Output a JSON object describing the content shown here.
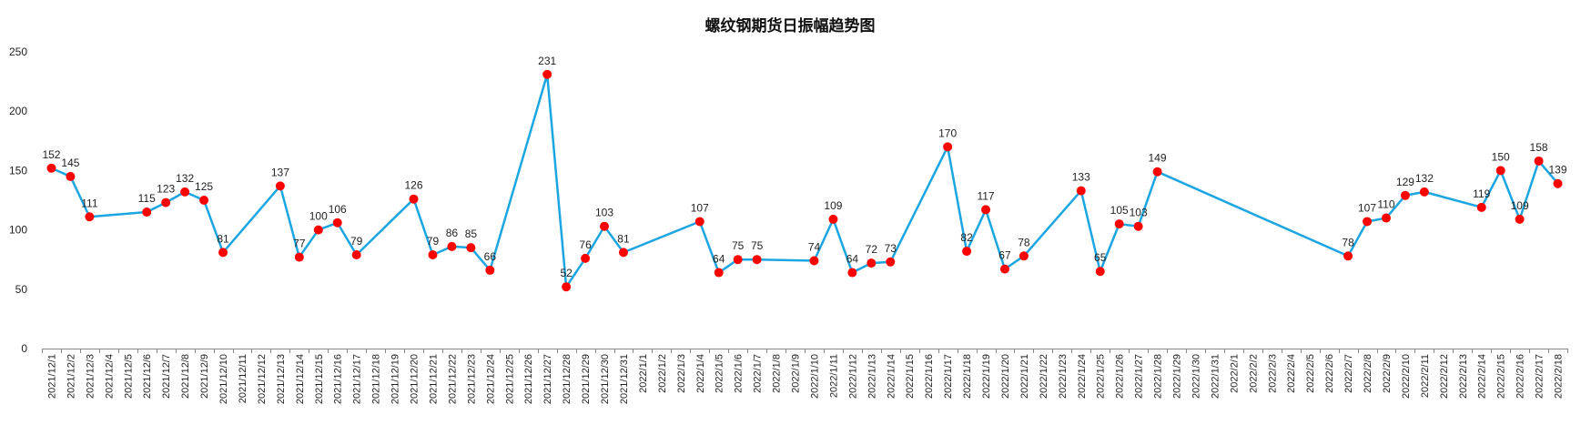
{
  "chart_data": {
    "type": "line",
    "title": "螺纹钢期货日振幅趋势图",
    "xlabel": "",
    "ylabel": "",
    "ylim": [
      0,
      250
    ],
    "yticks": [
      0,
      50,
      100,
      150,
      200,
      250
    ],
    "grid": false,
    "legend": "none",
    "colors": {
      "line": "#1BA6E2",
      "marker": "#FF0000",
      "axis": "#888888"
    },
    "categories": [
      "2021/12/1",
      "2021/12/2",
      "2021/12/3",
      "2021/12/4",
      "2021/12/5",
      "2021/12/6",
      "2021/12/7",
      "2021/12/8",
      "2021/12/9",
      "2021/12/10",
      "2021/12/11",
      "2021/12/12",
      "2021/12/13",
      "2021/12/14",
      "2021/12/15",
      "2021/12/16",
      "2021/12/17",
      "2021/12/18",
      "2021/12/19",
      "2021/12/20",
      "2021/12/21",
      "2021/12/22",
      "2021/12/23",
      "2021/12/24",
      "2021/12/25",
      "2021/12/26",
      "2021/12/27",
      "2021/12/28",
      "2021/12/29",
      "2021/12/30",
      "2021/12/31",
      "2022/1/1",
      "2022/1/2",
      "2022/1/3",
      "2022/1/4",
      "2022/1/5",
      "2022/1/6",
      "2022/1/7",
      "2022/1/8",
      "2022/1/9",
      "2022/1/10",
      "2022/1/11",
      "2022/1/12",
      "2022/1/13",
      "2022/1/14",
      "2022/1/15",
      "2022/1/16",
      "2022/1/17",
      "2022/1/18",
      "2022/1/19",
      "2022/1/20",
      "2022/1/21",
      "2022/1/22",
      "2022/1/23",
      "2022/1/24",
      "2022/1/25",
      "2022/1/26",
      "2022/1/27",
      "2022/1/28",
      "2022/1/29",
      "2022/1/30",
      "2022/1/31",
      "2022/2/1",
      "2022/2/2",
      "2022/2/3",
      "2022/2/4",
      "2022/2/5",
      "2022/2/6",
      "2022/2/7",
      "2022/2/8",
      "2022/2/9",
      "2022/2/10",
      "2022/2/11",
      "2022/2/12",
      "2022/2/13",
      "2022/2/14",
      "2022/2/15",
      "2022/2/16",
      "2022/2/17",
      "2022/2/18"
    ],
    "series": [
      {
        "points": [
          {
            "x": "2021/12/1",
            "y": 152
          },
          {
            "x": "2021/12/2",
            "y": 145
          },
          {
            "x": "2021/12/3",
            "y": 111
          },
          {
            "x": "2021/12/6",
            "y": 115
          },
          {
            "x": "2021/12/7",
            "y": 123
          },
          {
            "x": "2021/12/8",
            "y": 132
          },
          {
            "x": "2021/12/9",
            "y": 125
          },
          {
            "x": "2021/12/10",
            "y": 81
          },
          {
            "x": "2021/12/13",
            "y": 137
          },
          {
            "x": "2021/12/14",
            "y": 77
          },
          {
            "x": "2021/12/15",
            "y": 100
          },
          {
            "x": "2021/12/16",
            "y": 106
          },
          {
            "x": "2021/12/17",
            "y": 79
          },
          {
            "x": "2021/12/20",
            "y": 126
          },
          {
            "x": "2021/12/21",
            "y": 79
          },
          {
            "x": "2021/12/22",
            "y": 86
          },
          {
            "x": "2021/12/23",
            "y": 85
          },
          {
            "x": "2021/12/24",
            "y": 66
          },
          {
            "x": "2021/12/27",
            "y": 231
          },
          {
            "x": "2021/12/28",
            "y": 52
          },
          {
            "x": "2021/12/29",
            "y": 76
          },
          {
            "x": "2021/12/30",
            "y": 103
          },
          {
            "x": "2021/12/31",
            "y": 81
          },
          {
            "x": "2022/1/4",
            "y": 107
          },
          {
            "x": "2022/1/5",
            "y": 64
          },
          {
            "x": "2022/1/6",
            "y": 75
          },
          {
            "x": "2022/1/7",
            "y": 75
          },
          {
            "x": "2022/1/10",
            "y": 74
          },
          {
            "x": "2022/1/11",
            "y": 109
          },
          {
            "x": "2022/1/12",
            "y": 64
          },
          {
            "x": "2022/1/13",
            "y": 72
          },
          {
            "x": "2022/1/14",
            "y": 73
          },
          {
            "x": "2022/1/17",
            "y": 170
          },
          {
            "x": "2022/1/18",
            "y": 82
          },
          {
            "x": "2022/1/19",
            "y": 117
          },
          {
            "x": "2022/1/20",
            "y": 67
          },
          {
            "x": "2022/1/21",
            "y": 78
          },
          {
            "x": "2022/1/24",
            "y": 133
          },
          {
            "x": "2022/1/25",
            "y": 65
          },
          {
            "x": "2022/1/26",
            "y": 105
          },
          {
            "x": "2022/1/27",
            "y": 103
          },
          {
            "x": "2022/1/28",
            "y": 149
          },
          {
            "x": "2022/2/7",
            "y": 78
          },
          {
            "x": "2022/2/8",
            "y": 107
          },
          {
            "x": "2022/2/9",
            "y": 110
          },
          {
            "x": "2022/2/10",
            "y": 129
          },
          {
            "x": "2022/2/11",
            "y": 132
          },
          {
            "x": "2022/2/14",
            "y": 119
          },
          {
            "x": "2022/2/15",
            "y": 150
          },
          {
            "x": "2022/2/16",
            "y": 109
          },
          {
            "x": "2022/2/17",
            "y": 158
          },
          {
            "x": "2022/2/18",
            "y": 139
          }
        ]
      }
    ]
  }
}
